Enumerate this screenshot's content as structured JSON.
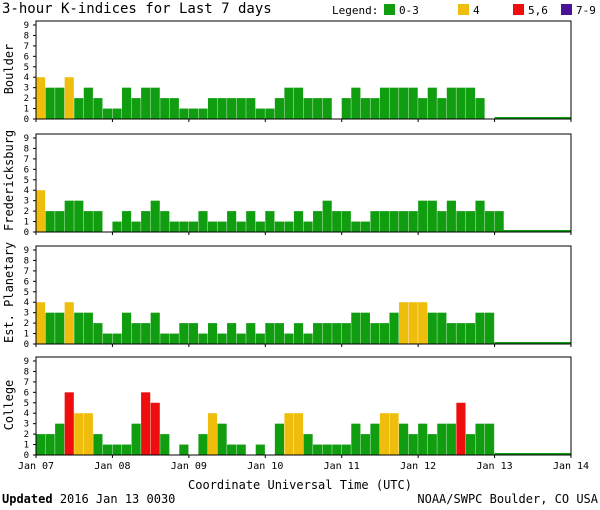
{
  "header": {
    "title": "3-hour K-indices for Last 7 days",
    "legend_title": "Legend:",
    "legend": [
      {
        "label": "0-3",
        "color": "#109d10"
      },
      {
        "label": "4",
        "color": "#efbd0b"
      },
      {
        "label": "5,6",
        "color": "#ee0e0e"
      },
      {
        "label": "7-9",
        "color": "#4a1294"
      }
    ]
  },
  "footer": {
    "updated_label": "Updated",
    "updated_value": "2016 Jan 13 0030",
    "source": "NOAA/SWPC Boulder, CO USA"
  },
  "chart_data": {
    "type": "bar",
    "xlabel": "Coordinate Universal Time (UTC)",
    "x_ticks": [
      "Jan 07",
      "Jan 08",
      "Jan 09",
      "Jan 10",
      "Jan 11",
      "Jan 12",
      "Jan 13",
      "Jan 14"
    ],
    "y_ticks": [
      "0",
      "1",
      "2",
      "3",
      "4",
      "5",
      "6",
      "7",
      "8",
      "9"
    ],
    "ylim": [
      0,
      9
    ],
    "color_scale": [
      {
        "range": "0-3",
        "color": "#109d10"
      },
      {
        "range": "4",
        "color": "#efbd0b"
      },
      {
        "range": "5,6",
        "color": "#ee0e0e"
      },
      {
        "range": "7-9",
        "color": "#4a1294"
      }
    ],
    "panels": [
      {
        "name": "Boulder",
        "values": [
          4,
          3,
          3,
          4,
          2,
          3,
          2,
          1,
          1,
          3,
          2,
          3,
          3,
          2,
          2,
          1,
          1,
          1,
          2,
          2,
          2,
          2,
          2,
          1,
          1,
          2,
          3,
          3,
          2,
          2,
          2,
          0,
          2,
          3,
          2,
          2,
          3,
          3,
          3,
          3,
          2,
          3,
          2,
          3,
          3,
          3,
          2,
          0,
          0,
          0,
          0,
          0,
          0,
          0,
          0,
          0
        ]
      },
      {
        "name": "Fredericksburg",
        "values": [
          4,
          2,
          2,
          3,
          3,
          2,
          2,
          0,
          1,
          2,
          1,
          2,
          3,
          2,
          1,
          1,
          1,
          2,
          1,
          1,
          2,
          1,
          2,
          1,
          2,
          1,
          1,
          2,
          1,
          2,
          3,
          2,
          2,
          1,
          1,
          2,
          2,
          2,
          2,
          2,
          3,
          3,
          2,
          3,
          2,
          2,
          3,
          2,
          2,
          0,
          0,
          0,
          0,
          0,
          0,
          0
        ]
      },
      {
        "name": "Est. Planetary",
        "values": [
          4,
          3,
          3,
          4,
          3,
          3,
          2,
          1,
          1,
          3,
          2,
          2,
          3,
          1,
          1,
          2,
          2,
          1,
          2,
          1,
          2,
          1,
          2,
          1,
          2,
          2,
          1,
          2,
          1,
          2,
          2,
          2,
          2,
          3,
          3,
          2,
          2,
          3,
          4,
          4,
          4,
          3,
          3,
          2,
          2,
          2,
          3,
          3,
          0,
          0,
          0,
          0,
          0,
          0,
          0,
          0
        ]
      },
      {
        "name": "College",
        "values": [
          2,
          2,
          3,
          6,
          4,
          4,
          2,
          1,
          1,
          1,
          3,
          6,
          5,
          2,
          0,
          1,
          0,
          2,
          4,
          3,
          1,
          1,
          0,
          1,
          0,
          3,
          4,
          4,
          2,
          1,
          1,
          1,
          1,
          3,
          2,
          3,
          4,
          4,
          3,
          2,
          3,
          2,
          3,
          3,
          5,
          2,
          3,
          3,
          0,
          0,
          0,
          0,
          0,
          0,
          0,
          0
        ]
      }
    ]
  }
}
